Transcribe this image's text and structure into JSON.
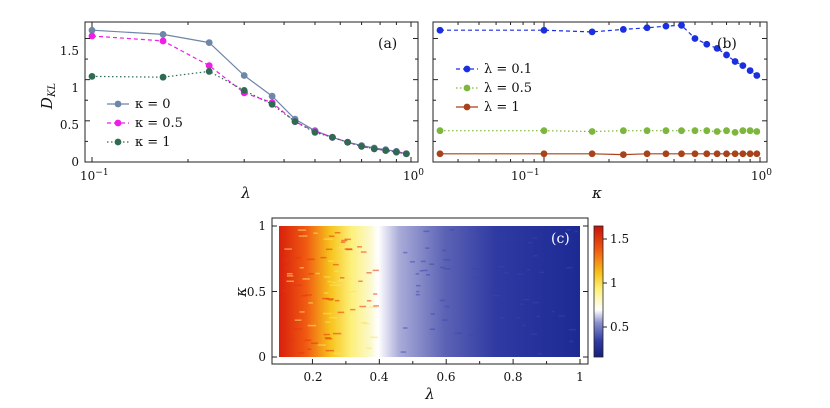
{
  "chart_data": [
    {
      "panel": "(a)",
      "type": "line",
      "xscale": "log",
      "xlim": [
        0.1,
        1.0
      ],
      "ylim": [
        0,
        1.7
      ],
      "xlabel": "λ",
      "ylabel": "D_KL",
      "xticks": [
        "10⁻¹",
        "10⁰"
      ],
      "yticks": [
        "0",
        "0.5",
        "1",
        "1.5"
      ],
      "legend_position": "lower-left",
      "x": [
        0.1,
        0.167,
        0.233,
        0.3,
        0.367,
        0.433,
        0.5,
        0.567,
        0.633,
        0.7,
        0.767,
        0.833,
        0.9,
        0.967
      ],
      "series": [
        {
          "name": "κ = 0",
          "color": "#6e86a8",
          "dash": "solid",
          "values": [
            1.6,
            1.55,
            1.45,
            1.05,
            0.8,
            0.52,
            0.38,
            0.3,
            0.24,
            0.2,
            0.17,
            0.15,
            0.13,
            0.1
          ]
        },
        {
          "name": "κ = 0.5",
          "color": "#ee1ee6",
          "dash": "dashed",
          "values": [
            1.53,
            1.47,
            1.17,
            0.84,
            0.72,
            0.49,
            0.37,
            0.3,
            0.24,
            0.19,
            0.16,
            0.14,
            0.12,
            0.1
          ]
        },
        {
          "name": "κ = 1",
          "color": "#2e6b52",
          "dash": "dotted",
          "values": [
            1.04,
            1.03,
            1.1,
            0.87,
            0.7,
            0.49,
            0.36,
            0.3,
            0.24,
            0.19,
            0.16,
            0.14,
            0.12,
            0.1
          ]
        }
      ]
    },
    {
      "panel": "(b)",
      "type": "line",
      "xscale": "log",
      "xlim": [
        0.033,
        1.0
      ],
      "ylim": [
        0,
        1.7
      ],
      "xlabel": "κ",
      "ylabel": "",
      "xticks": [
        "10⁻¹",
        "10⁰"
      ],
      "legend_position": "center-left",
      "x": [
        0.033,
        0.1,
        0.167,
        0.233,
        0.3,
        0.367,
        0.433,
        0.5,
        0.567,
        0.633,
        0.7,
        0.767,
        0.833,
        0.9,
        0.967
      ],
      "series": [
        {
          "name": "λ = 0.1",
          "color": "#1a2fe0",
          "dash": "dashed",
          "values": [
            1.6,
            1.6,
            1.58,
            1.61,
            1.63,
            1.65,
            1.66,
            1.5,
            1.43,
            1.38,
            1.3,
            1.22,
            1.17,
            1.11,
            1.05
          ]
        },
        {
          "name": "λ = 0.5",
          "color": "#7db63c",
          "dash": "dotted",
          "values": [
            0.38,
            0.38,
            0.37,
            0.38,
            0.38,
            0.38,
            0.38,
            0.38,
            0.38,
            0.37,
            0.38,
            0.36,
            0.38,
            0.38,
            0.37
          ]
        },
        {
          "name": "λ = 1",
          "color": "#a8421a",
          "dash": "solid",
          "values": [
            0.1,
            0.1,
            0.1,
            0.09,
            0.1,
            0.1,
            0.1,
            0.1,
            0.1,
            0.1,
            0.1,
            0.1,
            0.1,
            0.1,
            0.1
          ]
        }
      ]
    },
    {
      "panel": "(c)",
      "type": "heatmap",
      "xlim": [
        0.1,
        1.0
      ],
      "ylim": [
        0,
        1
      ],
      "xlabel": "λ",
      "ylabel": "κ",
      "xticks": [
        "0.2",
        "0.4",
        "0.6",
        "0.8",
        "1"
      ],
      "yticks": [
        "0",
        "0.5",
        "1"
      ],
      "colorbar_ticks": [
        "0.5",
        "1",
        "1.5"
      ],
      "colorbar_range": [
        0.1,
        1.7
      ],
      "description_values": "D_KL over λ (0.1–1) and κ (0–1); high (~1.6) at small λ, low (~0.1) for λ > 0.4"
    }
  ],
  "panel_labels": {
    "a": "(a)",
    "b": "(b)",
    "c": "(c)"
  },
  "axis_text": {
    "a_xlabel": "λ",
    "a_ylabel_main": "D",
    "a_ylabel_sub": "KL",
    "b_xlabel": "κ",
    "c_xlabel": "λ",
    "c_ylabel": "κ",
    "tick_10m1": "10",
    "tick_10m1_exp": "−1",
    "tick_100": "10",
    "tick_100_exp": "0",
    "a_y0": "0",
    "a_y05": "0.5",
    "a_y1": "1",
    "a_y15": "1.5",
    "c_x02": "0.2",
    "c_x04": "0.4",
    "c_x06": "0.6",
    "c_x08": "0.8",
    "c_x1": "1",
    "c_y0": "0",
    "c_y05": "0.5",
    "c_y1": "1",
    "cb_05": "0.5",
    "cb_1": "1",
    "cb_15": "1.5"
  },
  "legend_a": [
    "κ = 0",
    "κ = 0.5",
    "κ = 1"
  ],
  "legend_b": [
    "λ = 0.1",
    "λ = 0.5",
    "λ = 1"
  ]
}
